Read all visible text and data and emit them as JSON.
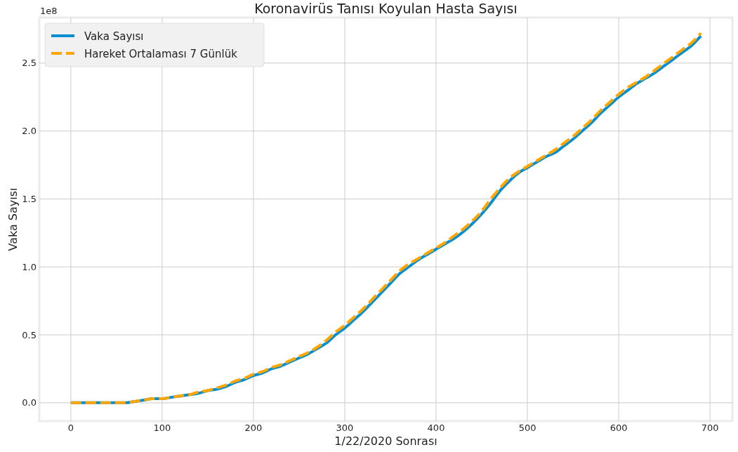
{
  "chart_data": {
    "type": "line",
    "title": "Koronavirüs Tanısı Koyulan Hasta Sayısı",
    "xlabel": "1/22/2020 Sonrası",
    "ylabel": "Vaka Sayısı",
    "annotations": [
      "1e8"
    ],
    "x": [
      0,
      10,
      20,
      30,
      40,
      50,
      60,
      70,
      80,
      90,
      100,
      110,
      120,
      130,
      140,
      150,
      160,
      170,
      180,
      190,
      200,
      210,
      220,
      230,
      240,
      250,
      260,
      270,
      280,
      290,
      300,
      310,
      320,
      330,
      340,
      350,
      360,
      370,
      380,
      390,
      400,
      410,
      420,
      430,
      440,
      450,
      460,
      470,
      480,
      490,
      500,
      510,
      520,
      530,
      540,
      550,
      560,
      570,
      580,
      590,
      600,
      610,
      620,
      630,
      640,
      650,
      660,
      670,
      680,
      690
    ],
    "series": [
      {
        "name": "Vaka Sayısı",
        "color": "#008fd5",
        "line_style": "solid",
        "values": [
          0,
          0,
          0,
          0,
          0,
          0,
          0,
          0.01,
          0.02,
          0.03,
          0.03,
          0.04,
          0.05,
          0.06,
          0.07,
          0.09,
          0.1,
          0.12,
          0.15,
          0.17,
          0.2,
          0.22,
          0.25,
          0.27,
          0.3,
          0.33,
          0.36,
          0.4,
          0.44,
          0.5,
          0.55,
          0.61,
          0.67,
          0.74,
          0.81,
          0.88,
          0.95,
          1.0,
          1.05,
          1.09,
          1.13,
          1.17,
          1.21,
          1.26,
          1.32,
          1.39,
          1.47,
          1.56,
          1.63,
          1.69,
          1.73,
          1.77,
          1.81,
          1.84,
          1.89,
          1.94,
          2.0,
          2.06,
          2.13,
          2.19,
          2.25,
          2.3,
          2.35,
          2.39,
          2.43,
          2.48,
          2.53,
          2.58,
          2.63,
          2.7
        ]
      },
      {
        "name": "Hareket Ortalaması 7 Günlük",
        "color": "#ffa500",
        "line_style": "dashed",
        "values": [
          0,
          0,
          0,
          0,
          0,
          0,
          0,
          0.01,
          0.02,
          0.03,
          0.03,
          0.04,
          0.05,
          0.06,
          0.08,
          0.09,
          0.11,
          0.13,
          0.16,
          0.18,
          0.21,
          0.23,
          0.26,
          0.28,
          0.31,
          0.34,
          0.37,
          0.41,
          0.46,
          0.52,
          0.57,
          0.63,
          0.69,
          0.76,
          0.83,
          0.9,
          0.97,
          1.02,
          1.06,
          1.1,
          1.14,
          1.18,
          1.23,
          1.28,
          1.34,
          1.41,
          1.5,
          1.58,
          1.65,
          1.7,
          1.74,
          1.78,
          1.82,
          1.86,
          1.91,
          1.96,
          2.02,
          2.08,
          2.15,
          2.21,
          2.27,
          2.32,
          2.36,
          2.4,
          2.45,
          2.5,
          2.55,
          2.6,
          2.65,
          2.72
        ]
      }
    ],
    "xlim": [
      -34.5,
      724.5
    ],
    "ylim": [
      -0.135,
      2.835
    ],
    "xticks": [
      0,
      100,
      200,
      300,
      400,
      500,
      600,
      700
    ],
    "yticks": [
      {
        "value": 0,
        "label": "0.0"
      },
      0.5,
      {
        "value": 1,
        "label": "1.0"
      },
      1.5,
      {
        "value": 2,
        "label": "2.0"
      },
      2.5
    ],
    "grid": true,
    "legend": "top left"
  }
}
